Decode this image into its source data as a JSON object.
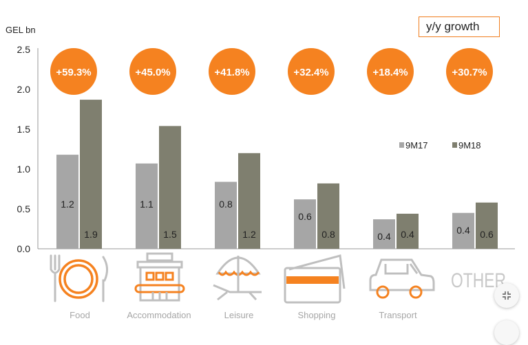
{
  "chart_data": {
    "type": "bar",
    "ylabel": "GEL bn",
    "ylim": [
      0,
      2.5
    ],
    "yticks": [
      "0.0",
      "0.5",
      "1.0",
      "1.5",
      "2.0",
      "2.5"
    ],
    "categories": [
      "Food",
      "Accommodation",
      "Leisure",
      "Shopping",
      "Transport",
      ""
    ],
    "other_label": "OTHER",
    "series": [
      {
        "name": "9M17",
        "color": "#a6a6a6",
        "values": [
          1.18,
          1.07,
          0.84,
          0.62,
          0.37,
          0.45
        ],
        "labels": [
          "1.2",
          "1.1",
          "0.8",
          "0.6",
          "0.4",
          "0.4"
        ]
      },
      {
        "name": "9M18",
        "color": "#7f7f6f",
        "values": [
          1.87,
          1.54,
          1.2,
          0.82,
          0.44,
          0.58
        ],
        "labels": [
          "1.9",
          "1.5",
          "1.2",
          "0.8",
          "0.4",
          "0.6"
        ]
      }
    ],
    "growth_title": "y/y growth",
    "growth": [
      "+59.3%",
      "+45.0%",
      "+41.8%",
      "+32.4%",
      "+18.4%",
      "+30.7%"
    ],
    "growth_color": "#f58220",
    "legend_position": "right"
  },
  "icons": [
    "food-icon",
    "accommodation-icon",
    "leisure-icon",
    "shopping-icon",
    "transport-icon",
    "other-text-icon"
  ],
  "accent_color": "#f58220",
  "icon_gray": "#bfbfbf"
}
